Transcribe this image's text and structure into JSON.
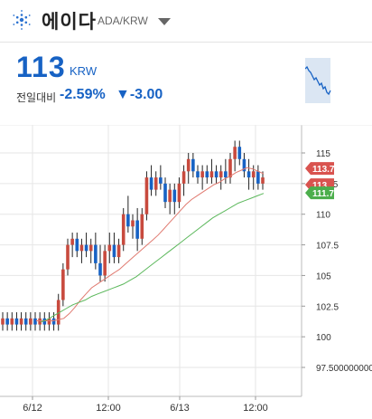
{
  "header": {
    "title": "에이다",
    "pair": "ADA/KRW"
  },
  "ticker": {
    "price": "113",
    "unit": "KRW",
    "change_label": "전일대비",
    "change_pct": "-2.59%",
    "change_abs": "▼-3.00"
  },
  "colors": {
    "accent": "#1762c4",
    "up": "#c84a3e",
    "down": "#1762c4",
    "ma_short": "#e07a70",
    "ma_long": "#5cb85c"
  },
  "chart_data": {
    "type": "candlestick",
    "y_ticks": [
      "115",
      "112.5",
      "110",
      "107.5",
      "105",
      "102.5",
      "100",
      "97.500000000"
    ],
    "x_ticks": [
      "6/12",
      "12:00",
      "6/13",
      "12:00"
    ],
    "ylim": [
      96,
      117
    ],
    "price_tags": [
      {
        "label": "113.733",
        "value": 113.733,
        "color": "#d9534f"
      },
      {
        "label": "113",
        "value": 113,
        "color": "#d9534f"
      },
      {
        "label": "111.74",
        "value": 111.74,
        "color": "#4cae4c"
      }
    ],
    "candles": [
      [
        101,
        102,
        100.5,
        101.5
      ],
      [
        101.5,
        102,
        100.5,
        101
      ],
      [
        101,
        102,
        100.5,
        101.5
      ],
      [
        101.5,
        102,
        100.5,
        101
      ],
      [
        101,
        102,
        100.5,
        101.5
      ],
      [
        101.5,
        102,
        100.5,
        101
      ],
      [
        101,
        102,
        100.5,
        101.5
      ],
      [
        101.5,
        102,
        100.5,
        101
      ],
      [
        101,
        102,
        100.5,
        101.5
      ],
      [
        101.5,
        102,
        100.5,
        101
      ],
      [
        101,
        102,
        100.5,
        101.5
      ],
      [
        101.5,
        102,
        100.5,
        101
      ],
      [
        101,
        103.5,
        100.5,
        103
      ],
      [
        103,
        106,
        102.5,
        105.5
      ],
      [
        105.5,
        108,
        105,
        107.5
      ],
      [
        107.5,
        108.5,
        106.5,
        108
      ],
      [
        108,
        108.5,
        106.5,
        107
      ],
      [
        107,
        108,
        106,
        107.5
      ],
      [
        107.5,
        108.5,
        106.5,
        107
      ],
      [
        107,
        108,
        106,
        107.5
      ],
      [
        107.5,
        108.5,
        105.5,
        106
      ],
      [
        106,
        107.5,
        104.5,
        105
      ],
      [
        105,
        107.5,
        104.5,
        107
      ],
      [
        107,
        108.5,
        106,
        107.5
      ],
      [
        107.5,
        108.5,
        106,
        106.5
      ],
      [
        106.5,
        108,
        106,
        107.5
      ],
      [
        107.5,
        110.5,
        107,
        110
      ],
      [
        110,
        111.5,
        108.5,
        109
      ],
      [
        109,
        110,
        108,
        109.5
      ],
      [
        109.5,
        110.5,
        107,
        108
      ],
      [
        108,
        110.5,
        107.5,
        110
      ],
      [
        110,
        113.5,
        109.5,
        113
      ],
      [
        113,
        114,
        111.5,
        112
      ],
      [
        112,
        113.5,
        111.5,
        113
      ],
      [
        113,
        114,
        112,
        112.5
      ],
      [
        112.5,
        113,
        110.5,
        111
      ],
      [
        111,
        112.5,
        110,
        112
      ],
      [
        112,
        112.5,
        110,
        111
      ],
      [
        111,
        113,
        110.5,
        112.5
      ],
      [
        112.5,
        114,
        111.5,
        113.5
      ],
      [
        113.5,
        115,
        112.5,
        114.5
      ],
      [
        114.5,
        115,
        113,
        113.5
      ],
      [
        113.5,
        114,
        112.5,
        113
      ],
      [
        113,
        114,
        112,
        113.5
      ],
      [
        113.5,
        114,
        112.5,
        113
      ],
      [
        113,
        114.5,
        112.5,
        113.5
      ],
      [
        113.5,
        114,
        112.5,
        113
      ],
      [
        113,
        114,
        112,
        113.5
      ],
      [
        113.5,
        114.5,
        112.5,
        113
      ],
      [
        113,
        115,
        112.5,
        114.5
      ],
      [
        114.5,
        116,
        113.5,
        115.5
      ],
      [
        115.5,
        116,
        114,
        114.5
      ],
      [
        114.5,
        115,
        113,
        113.5
      ],
      [
        113.5,
        114.5,
        112,
        113
      ],
      [
        113,
        114,
        112,
        113.5
      ],
      [
        113.5,
        114,
        112,
        112.5
      ],
      [
        112.5,
        113.5,
        112,
        113
      ]
    ],
    "ma_short": [
      101.3,
      101.3,
      101.3,
      101.3,
      101.4,
      101.5,
      101.9,
      102.4,
      103.0,
      103.5,
      104.0,
      104.3,
      104.6,
      104.9,
      105.2,
      105.5,
      105.9,
      106.3,
      106.7,
      107.1,
      107.5,
      107.9,
      108.3,
      108.8,
      109.3,
      109.8,
      110.3,
      110.8,
      111.2,
      111.5,
      111.8,
      112.1,
      112.4,
      112.6,
      112.9,
      113.1,
      113.4,
      113.6,
      113.8,
      113.7,
      113.5,
      113.3
    ],
    "ma_long": [
      101.2,
      101.4,
      101.7,
      102.0,
      102.3,
      102.6,
      102.8,
      103.0,
      103.3,
      103.5,
      103.7,
      103.9,
      104.1,
      104.3,
      104.6,
      104.9,
      105.3,
      105.7,
      106.1,
      106.5,
      106.9,
      107.3,
      107.7,
      108.1,
      108.5,
      108.9,
      109.3,
      109.7,
      110.0,
      110.3,
      110.6,
      110.9,
      111.1,
      111.3,
      111.5,
      111.7
    ]
  }
}
